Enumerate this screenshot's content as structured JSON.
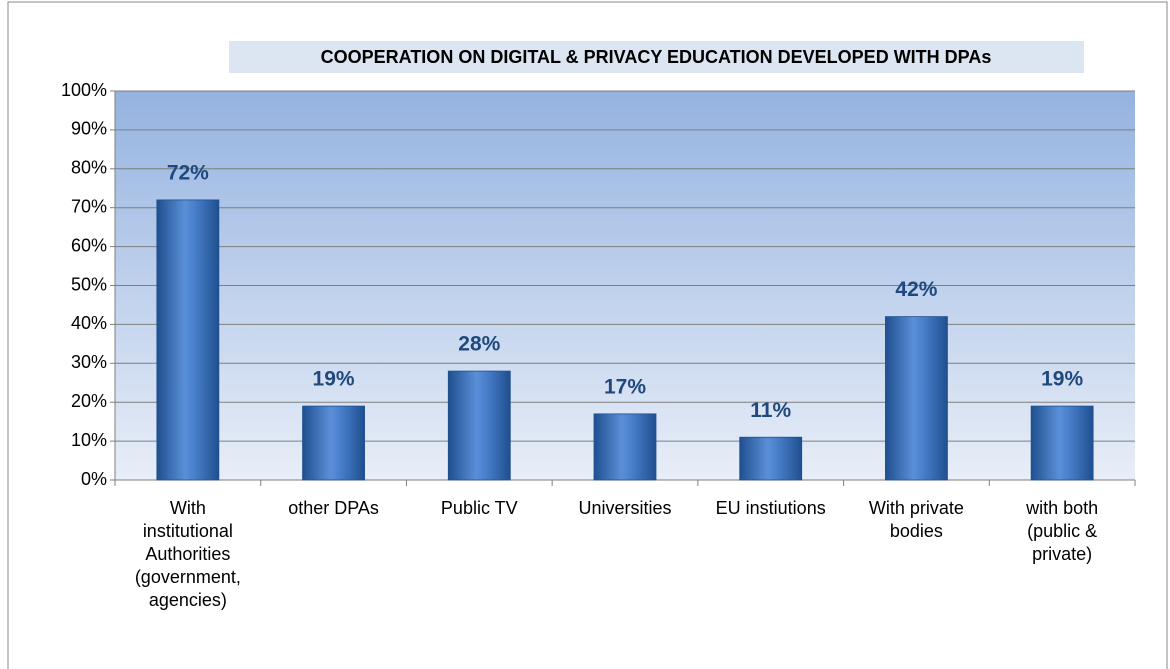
{
  "chart_data": {
    "type": "bar",
    "title": "COOPERATION ON DIGITAL & PRIVACY EDUCATION DEVELOPED WITH DPAs",
    "categories": [
      "With institutional Authorities (government, agencies)",
      "other DPAs",
      "Public TV",
      "Universities",
      "EU instiutions",
      "With private bodies",
      "with both (public & private)"
    ],
    "values": [
      72,
      19,
      28,
      17,
      11,
      42,
      19
    ],
    "value_labels": [
      "72%",
      "19%",
      "28%",
      "17%",
      "11%",
      "42%",
      "19%"
    ],
    "color": "#4f81bd",
    "ylim": [
      0,
      100
    ],
    "yticks": [
      {
        "value": 0,
        "label": "0%"
      },
      {
        "value": 10,
        "label": "10%"
      },
      {
        "value": 20,
        "label": "20%"
      },
      {
        "value": 30,
        "label": "30%"
      },
      {
        "value": 40,
        "label": "40%"
      },
      {
        "value": 50,
        "label": "50%"
      },
      {
        "value": 60,
        "label": "60%"
      },
      {
        "value": 70,
        "label": "70%"
      },
      {
        "value": 80,
        "label": "80%"
      },
      {
        "value": 90,
        "label": "90%"
      },
      {
        "value": 100,
        "label": "100%"
      }
    ],
    "grid": true
  }
}
